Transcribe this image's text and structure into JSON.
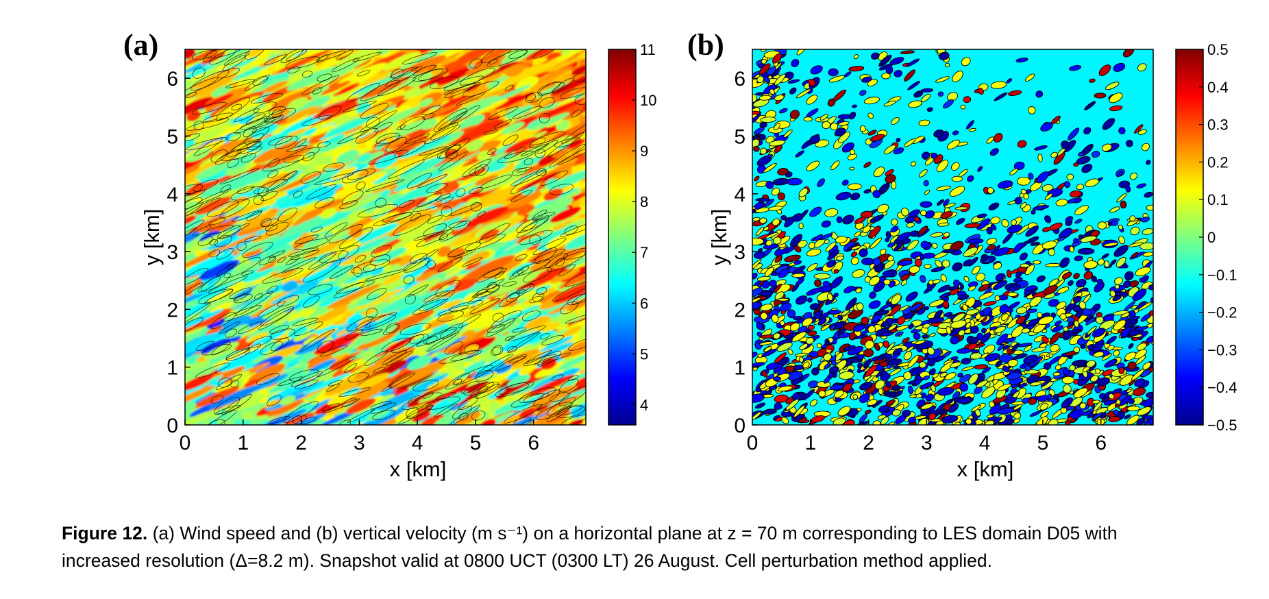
{
  "chart_data": [
    {
      "type": "heatmap",
      "panel_label": "(a)",
      "xlabel": "x [km]",
      "ylabel": "y [km]",
      "xlim": [
        0,
        6.9
      ],
      "ylim": [
        0,
        6.5
      ],
      "xticks": [
        "0",
        "1",
        "2",
        "3",
        "4",
        "5",
        "6"
      ],
      "yticks": [
        "0",
        "1",
        "2",
        "3",
        "4",
        "5",
        "6"
      ],
      "colorbar": {
        "min": 3.6,
        "max": 11.0,
        "ticks": [
          "4",
          "5",
          "6",
          "7",
          "8",
          "9",
          "10",
          "11"
        ],
        "colormap": "jet"
      },
      "contour_lines": true,
      "field_description_values": {
        "lower_left_background": 7,
        "band_near_y_1": 8,
        "upper_right_max": 9,
        "streak_peaks": 10
      }
    },
    {
      "type": "heatmap",
      "panel_label": "(b)",
      "xlabel": "x [km]",
      "ylabel": "y [km]",
      "xlim": [
        0,
        6.9
      ],
      "ylim": [
        0,
        6.5
      ],
      "xticks": [
        "0",
        "1",
        "2",
        "3",
        "4",
        "5",
        "6"
      ],
      "yticks": [
        "0",
        "1",
        "2",
        "3",
        "4",
        "5",
        "6"
      ],
      "colorbar": {
        "min": -0.5,
        "max": 0.5,
        "ticks": [
          "0.5",
          "0.4",
          "0.3",
          "0.2",
          "0.1",
          "0",
          "−0.1",
          "−0.2",
          "−0.3",
          "−0.4",
          "−0.5"
        ],
        "colormap": "jet"
      },
      "contour_lines": true,
      "field_description_values": {
        "background": -0.15,
        "updraft_patches": 0.1,
        "downdraft_patches": -0.4
      }
    }
  ],
  "caption": {
    "figure_label": "Figure 12.",
    "line1": "(a) Wind speed and (b) vertical velocity (m s⁻¹) on a horizontal plane at z = 70 m corresponding to LES domain D05 with",
    "line2": "increased resolution (Δ=8.2 m). Snapshot valid at 0800 UCT (0300 LT) 26 August. Cell perturbation method applied."
  }
}
